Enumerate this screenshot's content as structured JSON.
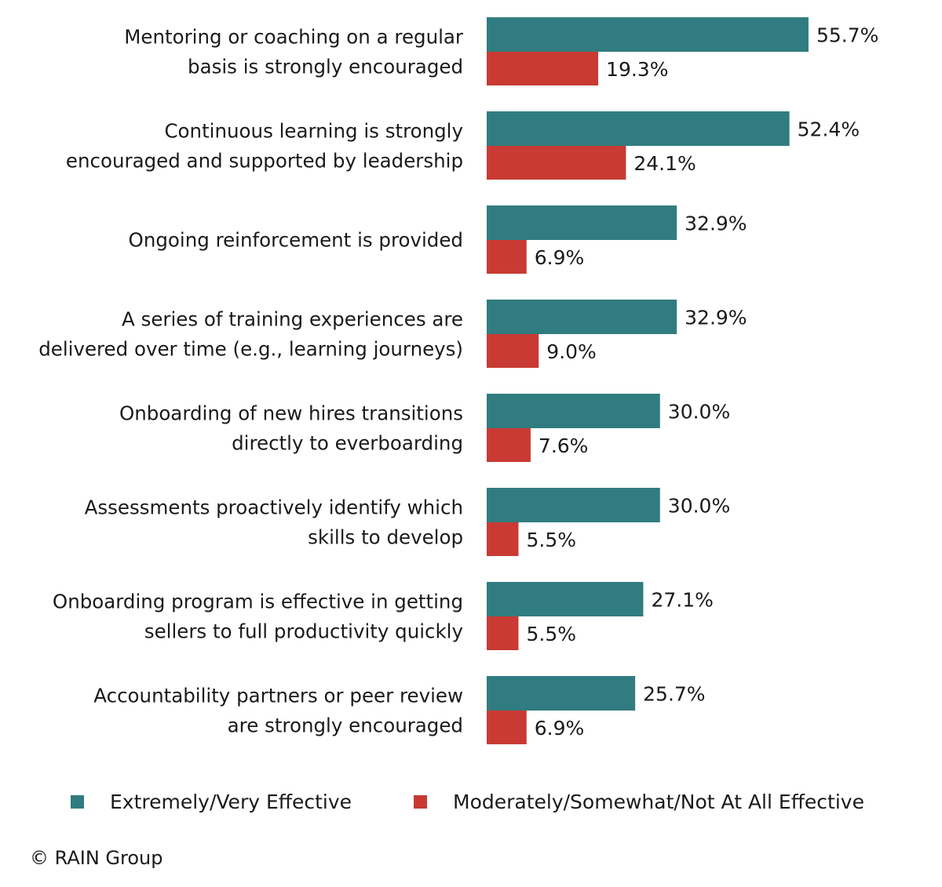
{
  "chart_data": {
    "type": "bar",
    "orientation": "horizontal",
    "categories": [
      [
        "Mentoring or coaching on a regular",
        "basis is strongly encouraged"
      ],
      [
        "Continuous learning is strongly",
        "encouraged and supported by leadership"
      ],
      [
        "Ongoing reinforcement is provided"
      ],
      [
        "A series of training experiences are",
        "delivered over time (e.g., learning journeys)"
      ],
      [
        "Onboarding of new hires transitions",
        "directly to everboarding"
      ],
      [
        "Assessments proactively identify which",
        "skills to develop"
      ],
      [
        "Onboarding program is effective in getting",
        "sellers to full productivity quickly"
      ],
      [
        "Accountability partners or peer review",
        "are strongly encouraged"
      ]
    ],
    "series": [
      {
        "name": "Extremely/Very Effective",
        "color": "#317c80",
        "values": [
          55.7,
          52.4,
          32.9,
          32.9,
          30.0,
          30.0,
          27.1,
          25.7
        ]
      },
      {
        "name": "Moderately/Somewhat/Not At All Effective",
        "color": "#c83a33",
        "values": [
          19.3,
          24.1,
          6.9,
          9.0,
          7.6,
          5.5,
          5.5,
          6.9
        ]
      }
    ],
    "value_format": "percent_1dp",
    "grid": false,
    "legend_position": "bottom"
  },
  "legend": {
    "items": [
      "Extremely/Very Effective",
      "Moderately/Somewhat/Not At All Effective"
    ]
  },
  "footer": {
    "copyright": "© RAIN Group"
  }
}
